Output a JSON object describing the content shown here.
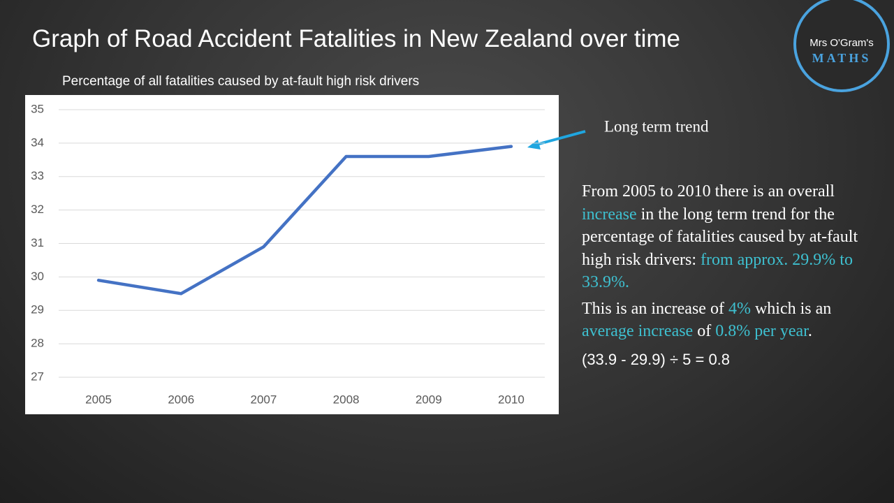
{
  "title": "Graph of Road Accident Fatalities in New Zealand over time",
  "logo": {
    "line1": "Mrs O'Gram's",
    "line2": "MATHS"
  },
  "chart_data": {
    "type": "line",
    "title": "Percentage of all fatalities caused by at-fault high risk drivers",
    "categories": [
      "2005",
      "2006",
      "2007",
      "2008",
      "2009",
      "2010"
    ],
    "values": [
      29.9,
      29.5,
      30.9,
      33.6,
      33.6,
      33.9
    ],
    "color": "#4472c4",
    "ylim": [
      27,
      35
    ],
    "yticks": [
      27,
      28,
      29,
      30,
      31,
      32,
      33,
      34,
      35
    ],
    "grid": true,
    "annotation": "Long term trend"
  },
  "notes": [
    [
      "From 2005 to 2010 there is an overall ",
      "increase",
      " in the long term trend for the percentage of fatalities caused by at-fault high risk drivers: ",
      "from approx. 29.9% to 33.9%."
    ],
    [
      "This is an increase of ",
      "4%",
      " which is an ",
      "average increase",
      " of ",
      "0.8% per year",
      "."
    ],
    [
      "(33.9 - 29.9) ÷ 5 = 0.8"
    ]
  ]
}
